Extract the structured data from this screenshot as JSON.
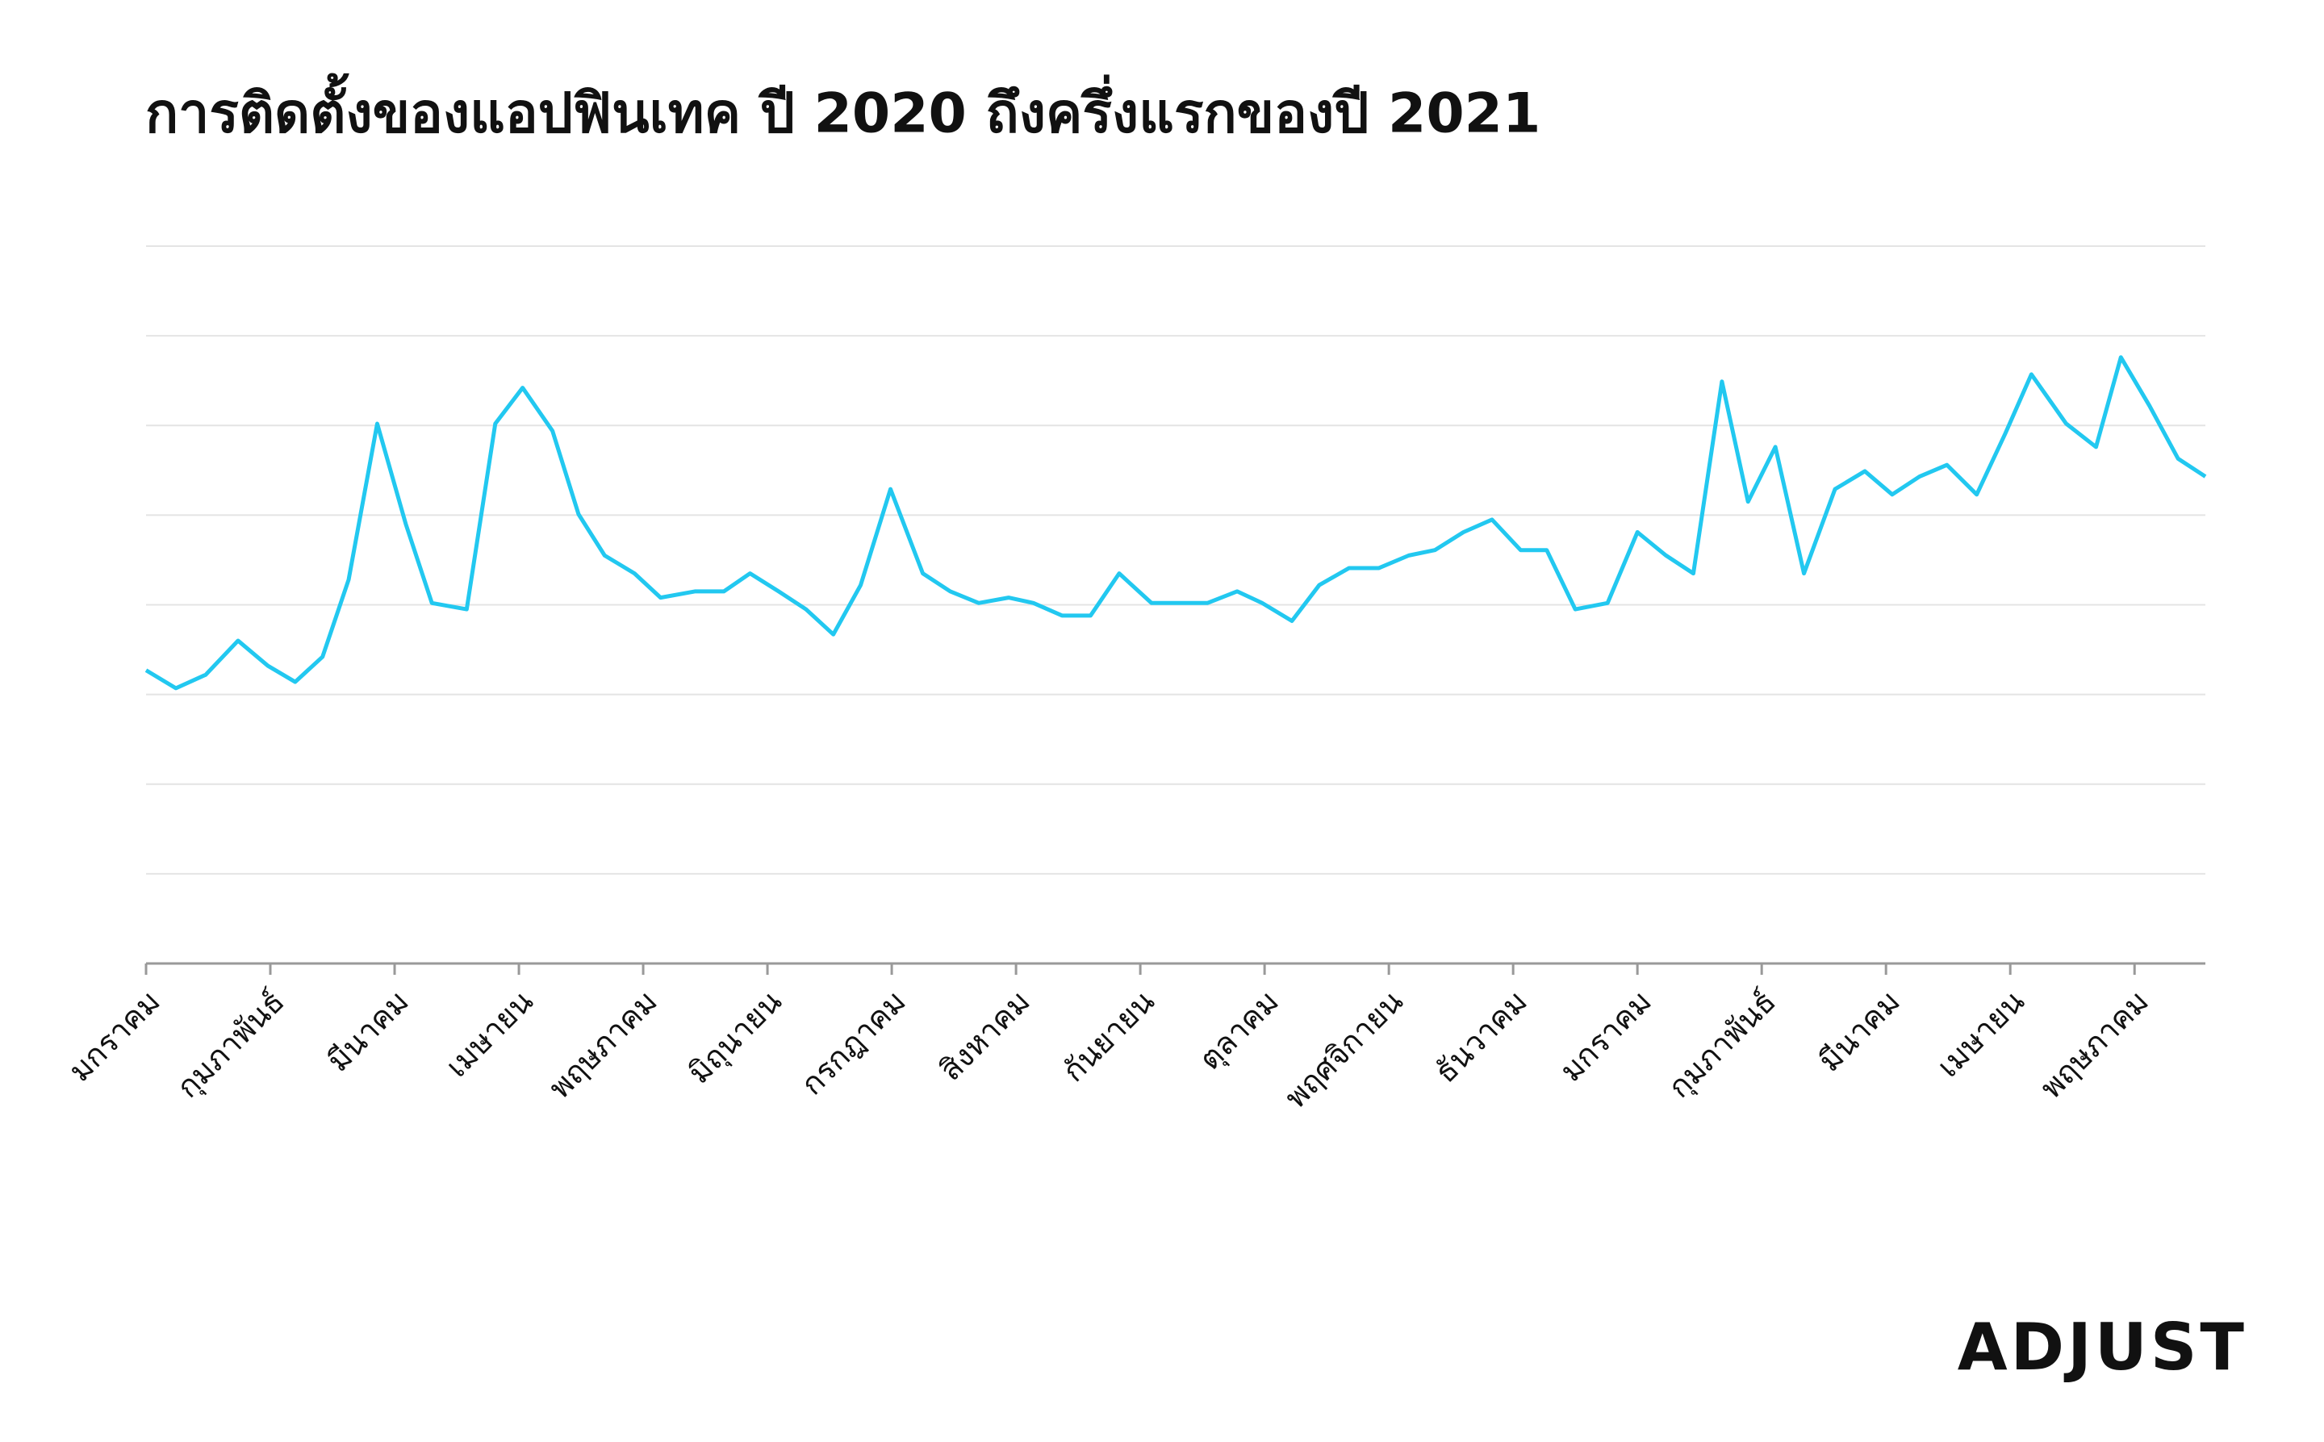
{
  "chart_data": {
    "type": "line",
    "title": "การติดตั้งของแอปฟินเทค ปี 2020 ถึงครึ่งแรกของปี 2021",
    "logo": "ADJUST",
    "xlim": [
      0,
      16.57
    ],
    "xticks": [
      {
        "value": 0,
        "label": "มกราคม"
      },
      {
        "value": 1,
        "label": "กุมภาพันธ์"
      },
      {
        "value": 2,
        "label": "มีนาคม"
      },
      {
        "value": 3,
        "label": "เมษายน"
      },
      {
        "value": 4,
        "label": "พฤษภาคม"
      },
      {
        "value": 5,
        "label": "มิถุนายน"
      },
      {
        "value": 6,
        "label": "กรกฎาคม"
      },
      {
        "value": 7,
        "label": "สิงหาคม"
      },
      {
        "value": 8,
        "label": "กันยายน"
      },
      {
        "value": 9,
        "label": "ตุลาคม"
      },
      {
        "value": 10,
        "label": "พฤศจิกายน"
      },
      {
        "value": 11,
        "label": "ธันวาคม"
      },
      {
        "value": 12,
        "label": "มกราคม"
      },
      {
        "value": 13,
        "label": "กุมภาพันธ์"
      },
      {
        "value": 14,
        "label": "มีนาคม"
      },
      {
        "value": 15,
        "label": "เมษายน"
      },
      {
        "value": 16,
        "label": "พฤษภาคม"
      }
    ],
    "ylim": [
      0,
      8
    ],
    "yticks": [
      0,
      1,
      2,
      3,
      4,
      5,
      6,
      7,
      8
    ],
    "grid": true,
    "series": [
      {
        "color": "#22c8f0",
        "x": [
          0,
          0.24,
          0.48,
          0.74,
          0.98,
          1.2,
          1.42,
          1.63,
          1.86,
          2.09,
          2.3,
          2.58,
          2.81,
          3.03,
          3.27,
          3.48,
          3.69,
          3.93,
          4.14,
          4.42,
          4.65,
          4.86,
          5.09,
          5.31,
          5.53,
          5.75,
          5.99,
          6.25,
          6.47,
          6.7,
          6.94,
          7.14,
          7.37,
          7.6,
          7.83,
          8.09,
          8.31,
          8.54,
          8.78,
          8.98,
          9.22,
          9.44,
          9.68,
          9.92,
          10.16,
          10.37,
          10.6,
          10.83,
          11.06,
          11.27,
          11.5,
          11.76,
          12,
          12.23,
          12.45,
          12.68,
          12.89,
          13.11,
          13.34,
          13.59,
          13.83,
          14.05,
          14.27,
          14.49,
          14.73,
          14.96,
          15.17,
          15.45,
          15.69,
          15.89,
          16.12,
          16.35,
          16.57
        ],
        "values": [
          3.27,
          3.07,
          3.22,
          3.6,
          3.32,
          3.14,
          3.42,
          4.28,
          6.02,
          4.9,
          4.02,
          3.95,
          6.02,
          6.42,
          5.94,
          5.01,
          4.55,
          4.35,
          4.08,
          4.15,
          4.15,
          4.35,
          4.15,
          3.95,
          3.67,
          4.22,
          5.29,
          4.35,
          4.15,
          4.02,
          4.08,
          4.02,
          3.88,
          3.88,
          4.35,
          4.02,
          4.02,
          4.02,
          4.15,
          4.02,
          3.82,
          4.22,
          4.41,
          4.41,
          4.55,
          4.61,
          4.81,
          4.95,
          4.61,
          4.61,
          3.95,
          4.02,
          4.81,
          4.55,
          4.35,
          6.49,
          5.15,
          5.76,
          4.35,
          5.29,
          5.49,
          5.23,
          5.43,
          5.56,
          5.23,
          5.91,
          6.57,
          6.02,
          5.76,
          6.76,
          6.22,
          5.63,
          5.43
        ]
      }
    ]
  }
}
